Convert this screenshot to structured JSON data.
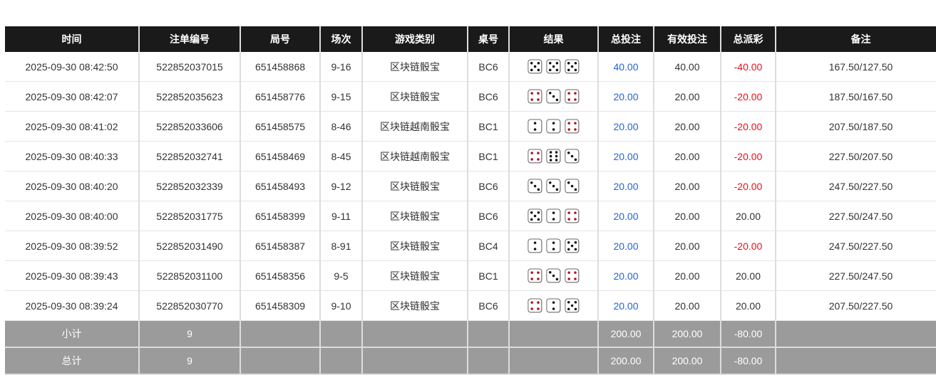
{
  "headers": [
    "时间",
    "注单编号",
    "局号",
    "场次",
    "游戏类别",
    "桌号",
    "结果",
    "总投注",
    "有效投注",
    "总派彩",
    "备注"
  ],
  "colors": {
    "header_bg": "#1a1a1a",
    "summary_bg": "#9b9b9b",
    "bet_blue": "#2266cc",
    "payout_red": "#e8101e",
    "pip_red": "#b01020"
  },
  "rows": [
    {
      "time": "2025-09-30 08:42:50",
      "bet_id": "522852037015",
      "round": "651458868",
      "session": "9-16",
      "game": "区块链骰宝",
      "table": "BC6",
      "dice": [
        5,
        5,
        5
      ],
      "total_bet": "40.00",
      "valid_bet": "40.00",
      "payout": "-40.00",
      "note": "167.50/127.50"
    },
    {
      "time": "2025-09-30 08:42:07",
      "bet_id": "522852035623",
      "round": "651458776",
      "session": "9-15",
      "game": "区块链骰宝",
      "table": "BC6",
      "dice": [
        4,
        3,
        4
      ],
      "total_bet": "20.00",
      "valid_bet": "20.00",
      "payout": "-20.00",
      "note": "187.50/167.50"
    },
    {
      "time": "2025-09-30 08:41:02",
      "bet_id": "522852033606",
      "round": "651458575",
      "session": "8-46",
      "game": "区块链越南骰宝",
      "table": "BC1",
      "dice": [
        2,
        2,
        4
      ],
      "total_bet": "20.00",
      "valid_bet": "20.00",
      "payout": "-20.00",
      "note": "207.50/187.50"
    },
    {
      "time": "2025-09-30 08:40:33",
      "bet_id": "522852032741",
      "round": "651458469",
      "session": "8-45",
      "game": "区块链越南骰宝",
      "table": "BC1",
      "dice": [
        4,
        6,
        3
      ],
      "total_bet": "20.00",
      "valid_bet": "20.00",
      "payout": "-20.00",
      "note": "227.50/207.50"
    },
    {
      "time": "2025-09-30 08:40:20",
      "bet_id": "522852032339",
      "round": "651458493",
      "session": "9-12",
      "game": "区块链骰宝",
      "table": "BC6",
      "dice": [
        3,
        3,
        3
      ],
      "total_bet": "20.00",
      "valid_bet": "20.00",
      "payout": "-20.00",
      "note": "247.50/227.50"
    },
    {
      "time": "2025-09-30 08:40:00",
      "bet_id": "522852031775",
      "round": "651458399",
      "session": "9-11",
      "game": "区块链骰宝",
      "table": "BC6",
      "dice": [
        5,
        2,
        4
      ],
      "total_bet": "20.00",
      "valid_bet": "20.00",
      "payout": "20.00",
      "note": "227.50/247.50"
    },
    {
      "time": "2025-09-30 08:39:52",
      "bet_id": "522852031490",
      "round": "651458387",
      "session": "8-91",
      "game": "区块链骰宝",
      "table": "BC4",
      "dice": [
        2,
        2,
        5
      ],
      "total_bet": "20.00",
      "valid_bet": "20.00",
      "payout": "-20.00",
      "note": "247.50/227.50"
    },
    {
      "time": "2025-09-30 08:39:43",
      "bet_id": "522852031100",
      "round": "651458356",
      "session": "9-5",
      "game": "区块链骰宝",
      "table": "BC1",
      "dice": [
        4,
        3,
        4
      ],
      "total_bet": "20.00",
      "valid_bet": "20.00",
      "payout": "20.00",
      "note": "227.50/247.50"
    },
    {
      "time": "2025-09-30 08:39:24",
      "bet_id": "522852030770",
      "round": "651458309",
      "session": "9-10",
      "game": "区块链骰宝",
      "table": "BC6",
      "dice": [
        4,
        2,
        5
      ],
      "total_bet": "20.00",
      "valid_bet": "20.00",
      "payout": "20.00",
      "note": "207.50/227.50"
    }
  ],
  "subtotal": {
    "label": "小计",
    "count": "9",
    "total_bet": "200.00",
    "valid_bet": "200.00",
    "payout": "-80.00"
  },
  "total": {
    "label": "总计",
    "count": "9",
    "total_bet": "200.00",
    "valid_bet": "200.00",
    "payout": "-80.00"
  }
}
